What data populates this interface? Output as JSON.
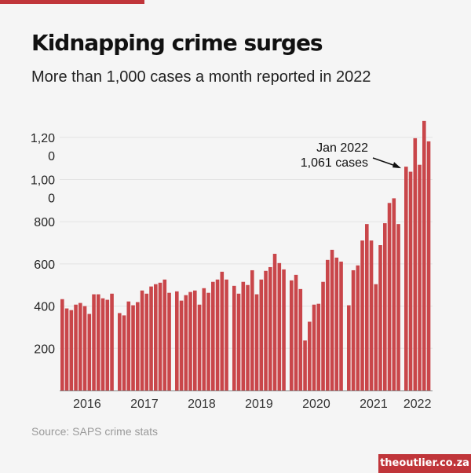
{
  "header": {
    "title": "Kidnapping crime surges",
    "subtitle": "More than 1,000 cases a month reported in 2022"
  },
  "footer": {
    "source": "Source: SAPS crime stats",
    "brand": "theoutlier.co.za"
  },
  "colors": {
    "accent": "#c0353a",
    "bar": "#c9464a",
    "grid": "#e3e3e3"
  },
  "chart_data": {
    "type": "bar",
    "title": "Kidnapping crime surges",
    "subtitle": "More than 1,000 cases a month reported in 2022",
    "xlabel": "",
    "ylabel": "",
    "ylim": [
      0,
      1300
    ],
    "grid": true,
    "yticks": [
      200,
      400,
      600,
      800,
      1000,
      1200
    ],
    "ytick_labels": [
      [
        "200"
      ],
      [
        "400"
      ],
      [
        "600"
      ],
      [
        "800"
      ],
      [
        "1,00",
        "0"
      ],
      [
        "1,20",
        "0"
      ]
    ],
    "year_labels": [
      "2016",
      "2017",
      "2018",
      "2019",
      "2020",
      "2021",
      "2022"
    ],
    "series": [
      {
        "name": "2016",
        "values": [
          433,
          389,
          381,
          407,
          415,
          400,
          363,
          456,
          456,
          437,
          430,
          459
        ]
      },
      {
        "name": "2017",
        "values": [
          367,
          356,
          422,
          404,
          419,
          474,
          459,
          493,
          504,
          511,
          526,
          463
        ]
      },
      {
        "name": "2018",
        "values": [
          470,
          426,
          452,
          467,
          474,
          407,
          485,
          463,
          515,
          526,
          563,
          526
        ]
      },
      {
        "name": "2019",
        "values": [
          496,
          459,
          515,
          500,
          570,
          456,
          526,
          567,
          585,
          648,
          604,
          574
        ]
      },
      {
        "name": "2020",
        "values": [
          522,
          548,
          481,
          237,
          326,
          407,
          411,
          515,
          619,
          667,
          630,
          611
        ]
      },
      {
        "name": "2021",
        "values": [
          404,
          570,
          593,
          711,
          789,
          711,
          504,
          689,
          793,
          889,
          911,
          789
        ]
      },
      {
        "name": "2022",
        "values": [
          1061,
          1037,
          1196,
          1070,
          1278,
          1181
        ]
      }
    ],
    "annotation": {
      "lines": [
        "Jan 2022",
        "1,061 cases"
      ],
      "target_year": "2022",
      "target_index": 0
    }
  }
}
